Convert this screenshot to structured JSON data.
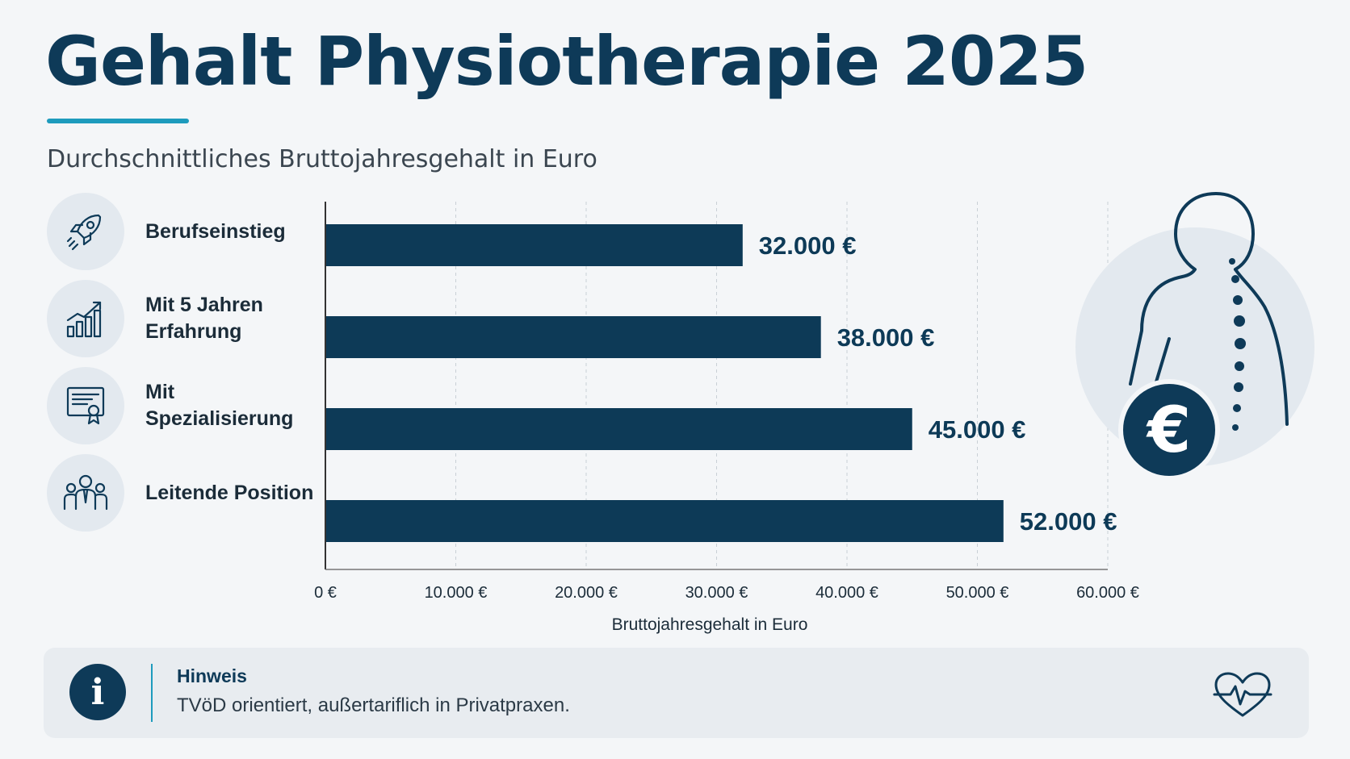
{
  "title": "Gehalt Physiotherapie 2025",
  "subtitle": "Durchschnittliches Bruttojahresgehalt in Euro",
  "colors": {
    "bar": "#0d3a57",
    "accent": "#1e9bbd",
    "icon_bg": "#e3e9ef"
  },
  "categories": [
    {
      "label": "Berufseinstieg",
      "icon": "rocket-icon"
    },
    {
      "label": "Mit 5 Jahren\nErfahrung",
      "icon": "growth-chart-icon"
    },
    {
      "label": "Mit Spezialisierung",
      "icon": "certificate-icon"
    },
    {
      "label": "Leitende Position",
      "icon": "team-leader-icon"
    }
  ],
  "chart_data": {
    "type": "bar",
    "orientation": "horizontal",
    "categories": [
      "Berufseinstieg",
      "Mit 5 Jahren Erfahrung",
      "Mit Spezialisierung",
      "Leitende Position"
    ],
    "values": [
      32000,
      38000,
      45000,
      52000
    ],
    "value_labels": [
      "32.000 €",
      "38.000 €",
      "45.000 €",
      "52.000 €"
    ],
    "xlabel": "Bruttojahresgehalt in Euro",
    "xlim": [
      0,
      60000
    ],
    "x_ticks": [
      0,
      10000,
      20000,
      30000,
      40000,
      50000,
      60000
    ],
    "x_tick_labels": [
      "0 €",
      "10.000 €",
      "20.000 €",
      "30.000 €",
      "40.000 €",
      "50.000 €",
      "60.000 €"
    ],
    "grid": "vertical dashed"
  },
  "note": {
    "title": "Hinweis",
    "text": "TVöD orientiert, außertariflich in Privatpraxen.",
    "info_glyph": "i"
  }
}
